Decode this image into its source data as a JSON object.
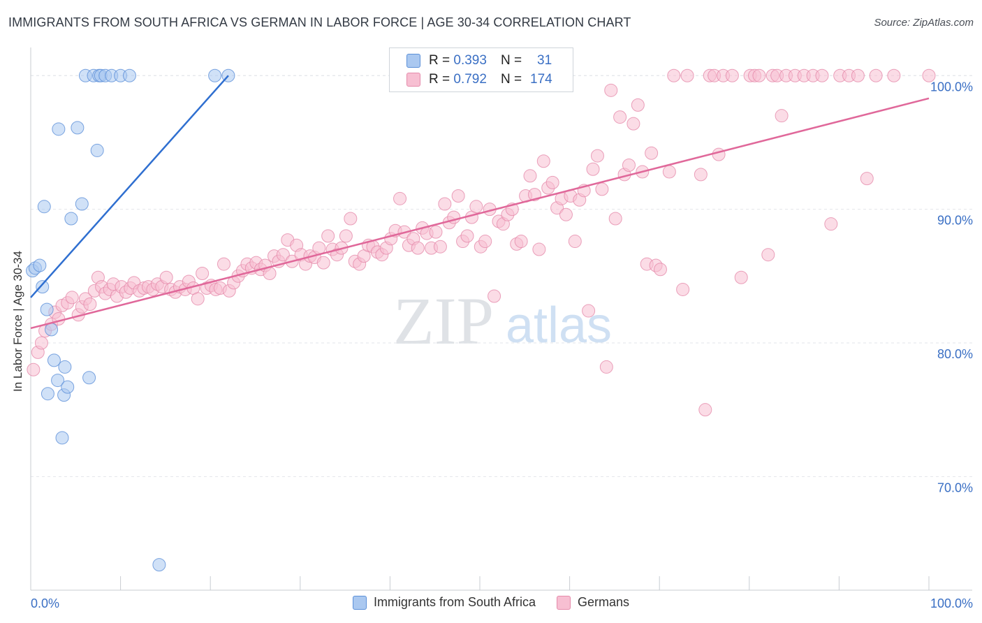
{
  "title": "IMMIGRANTS FROM SOUTH AFRICA VS GERMAN IN LABOR FORCE | AGE 30-34 CORRELATION CHART",
  "source": "Source: ZipAtlas.com",
  "watermark": {
    "zip": "ZIP",
    "atlas": "atlas"
  },
  "legend_top": [
    {
      "r_label": "R =",
      "r_value": "0.393",
      "n_label": "N =",
      "n_value": "31"
    },
    {
      "r_label": "R =",
      "r_value": "0.792",
      "n_label": "N =",
      "n_value": "174"
    }
  ],
  "chart_data": {
    "type": "scatter",
    "title": "IMMIGRANTS FROM SOUTH AFRICA VS GERMAN IN LABOR FORCE | AGE 30-34 CORRELATION CHART",
    "xlabel": "",
    "ylabel": "In Labor Force | Age 30-34",
    "xlim": [
      0,
      100
    ],
    "ylim": [
      61.5,
      102
    ],
    "x_tick_labels": [
      "0.0%",
      "100.0%"
    ],
    "y_ticks": [
      {
        "value": 70,
        "label": "70.0%"
      },
      {
        "value": 80,
        "label": "80.0%"
      },
      {
        "value": 90,
        "label": "90.0%"
      },
      {
        "value": 100,
        "label": "100.0%"
      }
    ],
    "grid": true,
    "legend_position": "bottom",
    "colors": {
      "blue_fill": "#aac8f0",
      "blue_stroke": "#5b8fd8",
      "blue_line": "#2f6fd0",
      "pink_fill": "#f7bfd2",
      "pink_stroke": "#e58aaa",
      "pink_line": "#e0689a",
      "axis_label": "#3a6fc4",
      "grid": "#e2e5ea"
    },
    "series": [
      {
        "name": "Immigrants from South Africa",
        "color": "blue",
        "trend": {
          "x": [
            0,
            22
          ],
          "y": [
            83.4,
            100
          ]
        },
        "points": [
          [
            0.2,
            85.4
          ],
          [
            0.5,
            85.6
          ],
          [
            1.0,
            85.8
          ],
          [
            1.3,
            84.2
          ],
          [
            1.5,
            90.2
          ],
          [
            1.8,
            82.5
          ],
          [
            2.3,
            81.0
          ],
          [
            2.6,
            78.7
          ],
          [
            3.0,
            77.2
          ],
          [
            3.1,
            96.0
          ],
          [
            3.5,
            72.9
          ],
          [
            3.7,
            76.1
          ],
          [
            3.8,
            78.2
          ],
          [
            4.1,
            76.7
          ],
          [
            4.5,
            89.3
          ],
          [
            5.2,
            96.1
          ],
          [
            5.7,
            90.4
          ],
          [
            6.1,
            100.0
          ],
          [
            6.5,
            77.4
          ],
          [
            7.0,
            100.0
          ],
          [
            7.4,
            94.4
          ],
          [
            7.6,
            100.0
          ],
          [
            7.8,
            100.0
          ],
          [
            8.3,
            100.0
          ],
          [
            9.0,
            100.0
          ],
          [
            10.0,
            100.0
          ],
          [
            11.0,
            100.0
          ],
          [
            14.3,
            63.4
          ],
          [
            20.5,
            100.0
          ],
          [
            22.0,
            100.0
          ],
          [
            1.9,
            76.2
          ]
        ]
      },
      {
        "name": "Germans",
        "color": "pink",
        "trend": {
          "x": [
            0,
            100
          ],
          "y": [
            81.1,
            98.3
          ]
        },
        "points": [
          [
            0.3,
            78.0
          ],
          [
            0.8,
            79.3
          ],
          [
            1.2,
            80.0
          ],
          [
            1.6,
            80.9
          ],
          [
            2.3,
            81.4
          ],
          [
            2.7,
            82.3
          ],
          [
            3.1,
            81.8
          ],
          [
            3.5,
            82.8
          ],
          [
            4.1,
            83.0
          ],
          [
            4.6,
            83.4
          ],
          [
            5.3,
            82.1
          ],
          [
            5.7,
            82.7
          ],
          [
            6.1,
            83.3
          ],
          [
            6.6,
            82.9
          ],
          [
            7.1,
            83.9
          ],
          [
            7.5,
            84.9
          ],
          [
            7.9,
            84.2
          ],
          [
            8.3,
            83.7
          ],
          [
            8.8,
            84.0
          ],
          [
            9.2,
            84.4
          ],
          [
            9.6,
            83.5
          ],
          [
            10.1,
            84.2
          ],
          [
            10.6,
            83.8
          ],
          [
            11.1,
            84.1
          ],
          [
            11.5,
            84.5
          ],
          [
            12.1,
            83.9
          ],
          [
            12.6,
            84.1
          ],
          [
            13.1,
            84.2
          ],
          [
            13.6,
            84.0
          ],
          [
            14.1,
            84.4
          ],
          [
            14.6,
            84.2
          ],
          [
            15.1,
            84.9
          ],
          [
            15.6,
            84.0
          ],
          [
            16.1,
            83.8
          ],
          [
            16.6,
            84.2
          ],
          [
            17.2,
            84.0
          ],
          [
            17.6,
            84.6
          ],
          [
            18.1,
            84.1
          ],
          [
            18.6,
            83.3
          ],
          [
            19.1,
            85.2
          ],
          [
            19.6,
            84.1
          ],
          [
            20.1,
            84.3
          ],
          [
            20.6,
            84.0
          ],
          [
            21.1,
            84.1
          ],
          [
            21.5,
            85.9
          ],
          [
            22.1,
            83.9
          ],
          [
            22.6,
            84.5
          ],
          [
            23.1,
            85.0
          ],
          [
            23.6,
            85.4
          ],
          [
            24.1,
            85.9
          ],
          [
            24.6,
            85.6
          ],
          [
            25.1,
            86.0
          ],
          [
            25.6,
            85.5
          ],
          [
            26.1,
            85.8
          ],
          [
            26.6,
            85.2
          ],
          [
            27.1,
            86.5
          ],
          [
            27.6,
            86.1
          ],
          [
            28.1,
            86.6
          ],
          [
            28.6,
            87.7
          ],
          [
            29.1,
            86.1
          ],
          [
            29.6,
            87.3
          ],
          [
            30.1,
            86.6
          ],
          [
            30.6,
            85.9
          ],
          [
            31.1,
            86.5
          ],
          [
            31.6,
            86.4
          ],
          [
            32.1,
            87.1
          ],
          [
            32.6,
            86.0
          ],
          [
            33.1,
            88.0
          ],
          [
            33.6,
            87.0
          ],
          [
            34.1,
            86.6
          ],
          [
            34.6,
            87.1
          ],
          [
            35.1,
            88.0
          ],
          [
            35.6,
            89.3
          ],
          [
            36.1,
            86.1
          ],
          [
            36.6,
            85.9
          ],
          [
            37.1,
            86.5
          ],
          [
            37.6,
            87.3
          ],
          [
            38.1,
            87.2
          ],
          [
            38.6,
            86.8
          ],
          [
            39.1,
            86.6
          ],
          [
            39.6,
            87.1
          ],
          [
            40.1,
            87.8
          ],
          [
            40.6,
            88.4
          ],
          [
            41.1,
            90.8
          ],
          [
            41.6,
            88.3
          ],
          [
            42.1,
            87.3
          ],
          [
            42.6,
            87.8
          ],
          [
            43.1,
            87.1
          ],
          [
            43.6,
            88.6
          ],
          [
            44.1,
            88.2
          ],
          [
            44.6,
            87.1
          ],
          [
            45.1,
            88.3
          ],
          [
            45.6,
            87.2
          ],
          [
            46.1,
            90.4
          ],
          [
            46.6,
            89.0
          ],
          [
            47.1,
            89.4
          ],
          [
            47.6,
            91.0
          ],
          [
            48.1,
            87.6
          ],
          [
            48.6,
            88.0
          ],
          [
            49.1,
            89.4
          ],
          [
            49.6,
            90.2
          ],
          [
            50.1,
            87.2
          ],
          [
            50.6,
            87.6
          ],
          [
            51.1,
            90.0
          ],
          [
            51.6,
            83.5
          ],
          [
            52.1,
            89.1
          ],
          [
            52.6,
            88.9
          ],
          [
            53.1,
            89.6
          ],
          [
            53.6,
            90.0
          ],
          [
            54.1,
            87.4
          ],
          [
            54.6,
            87.6
          ],
          [
            55.1,
            91.0
          ],
          [
            55.6,
            92.5
          ],
          [
            56.1,
            91.1
          ],
          [
            56.6,
            87.0
          ],
          [
            57.1,
            93.6
          ],
          [
            57.6,
            91.6
          ],
          [
            58.1,
            92.0
          ],
          [
            58.6,
            90.1
          ],
          [
            59.1,
            90.8
          ],
          [
            59.6,
            89.6
          ],
          [
            60.1,
            91.0
          ],
          [
            60.6,
            87.6
          ],
          [
            61.1,
            90.7
          ],
          [
            61.6,
            91.4
          ],
          [
            62.1,
            82.4
          ],
          [
            62.6,
            93.0
          ],
          [
            63.1,
            94.0
          ],
          [
            63.6,
            91.5
          ],
          [
            64.1,
            78.2
          ],
          [
            64.6,
            98.9
          ],
          [
            65.1,
            89.3
          ],
          [
            65.6,
            96.9
          ],
          [
            66.1,
            92.6
          ],
          [
            66.6,
            93.3
          ],
          [
            67.1,
            96.4
          ],
          [
            67.6,
            97.8
          ],
          [
            68.1,
            92.8
          ],
          [
            68.6,
            85.9
          ],
          [
            69.1,
            94.2
          ],
          [
            69.6,
            85.8
          ],
          [
            70.1,
            85.5
          ],
          [
            71.1,
            92.8
          ],
          [
            71.6,
            100.0
          ],
          [
            72.6,
            84.0
          ],
          [
            73.1,
            100.0
          ],
          [
            74.6,
            92.6
          ],
          [
            75.1,
            75.0
          ],
          [
            75.6,
            100.0
          ],
          [
            76.1,
            100.0
          ],
          [
            76.6,
            94.1
          ],
          [
            77.1,
            100.0
          ],
          [
            78.1,
            100.0
          ],
          [
            79.1,
            84.9
          ],
          [
            80.1,
            100.0
          ],
          [
            80.6,
            100.0
          ],
          [
            81.1,
            100.0
          ],
          [
            82.1,
            86.6
          ],
          [
            82.6,
            100.0
          ],
          [
            83.1,
            100.0
          ],
          [
            83.6,
            97.0
          ],
          [
            84.1,
            100.0
          ],
          [
            85.1,
            100.0
          ],
          [
            86.1,
            100.0
          ],
          [
            87.1,
            100.0
          ],
          [
            88.1,
            100.0
          ],
          [
            89.1,
            88.9
          ],
          [
            90.1,
            100.0
          ],
          [
            91.1,
            100.0
          ],
          [
            92.1,
            100.0
          ],
          [
            93.1,
            92.3
          ],
          [
            94.1,
            100.0
          ],
          [
            96.1,
            100.0
          ],
          [
            100.0,
            100.0
          ]
        ]
      }
    ]
  },
  "legend_bottom": [
    {
      "label": "Immigrants from South Africa",
      "color": "blue"
    },
    {
      "label": "Germans",
      "color": "pink"
    }
  ]
}
